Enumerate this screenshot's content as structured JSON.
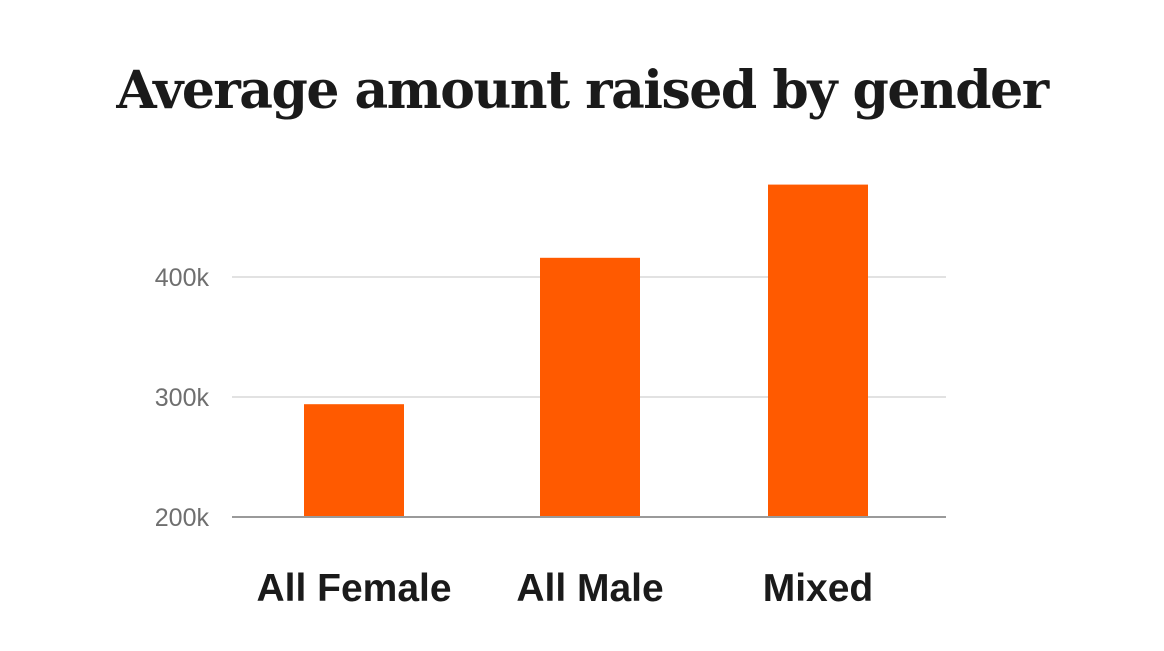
{
  "chart_data": {
    "type": "bar",
    "title": "Average amount raised by gender",
    "categories": [
      "All Female",
      "All Male",
      "Mixed"
    ],
    "values": [
      294000,
      416000,
      477000
    ],
    "xlabel": "",
    "ylabel": "",
    "ylim": [
      200000,
      500000
    ],
    "yticks": [
      200000,
      300000,
      400000
    ],
    "ytick_labels": [
      "200k",
      "300k",
      "400k"
    ],
    "grid": true,
    "bar_color": "#ff5a00",
    "grid_color": "#d9d9d9",
    "baseline_color": "#9a9a9a"
  }
}
